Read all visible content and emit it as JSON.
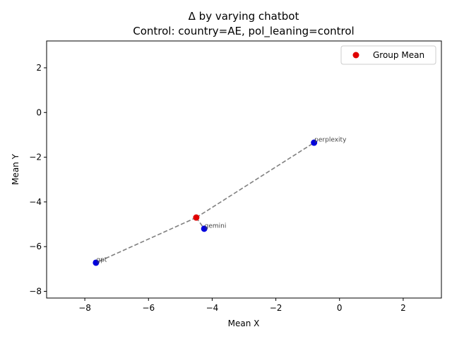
{
  "chart_data": {
    "type": "scatter",
    "title": "Δ by varying chatbot",
    "subtitle": "Control: country=AE, pol_leaning=control",
    "xlabel": "Mean X",
    "ylabel": "Mean Y",
    "xlim": [
      -9.2,
      3.2
    ],
    "ylim": [
      -8.3,
      3.2
    ],
    "xticks": [
      -8,
      -6,
      -4,
      -2,
      0,
      2
    ],
    "yticks": [
      -8,
      -6,
      -4,
      -2,
      0,
      2
    ],
    "xtick_labels": [
      "−8",
      "−6",
      "−4",
      "−2",
      "0",
      "2"
    ],
    "ytick_labels": [
      "−8",
      "−6",
      "−4",
      "−2",
      "0",
      "2"
    ],
    "grid": false,
    "legend_position": "top-right",
    "legend_label": "Group Mean",
    "group_mean": {
      "x": -4.5,
      "y": -4.7,
      "color": "#e00000"
    },
    "points": [
      {
        "label": "perplexity",
        "x": -0.8,
        "y": -1.35,
        "color": "#0000dd"
      },
      {
        "label": "gemini",
        "x": -4.25,
        "y": -5.2,
        "color": "#0000dd"
      },
      {
        "label": "gpt",
        "x": -7.65,
        "y": -6.72,
        "color": "#0000dd"
      }
    ],
    "connector_color": "#808080"
  }
}
